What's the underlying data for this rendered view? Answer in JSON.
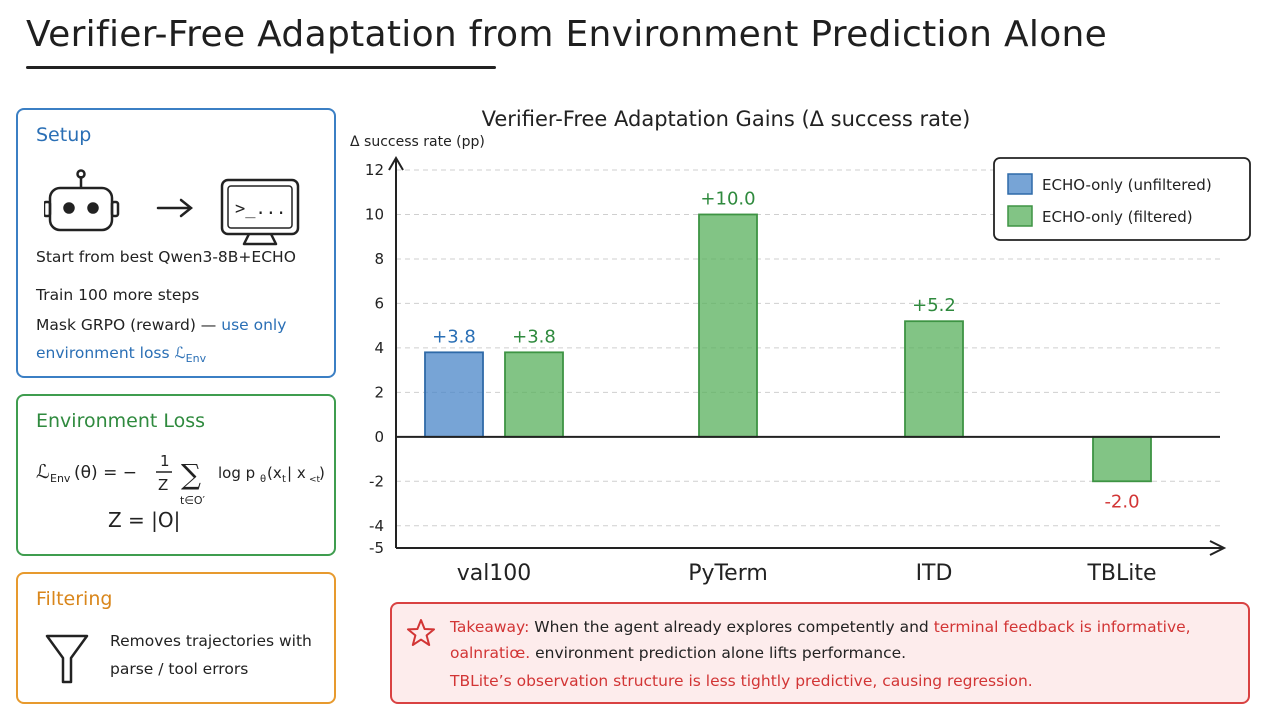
{
  "title": "Verifier-Free Adaptation from Environment Prediction Alone",
  "setup": {
    "heading": "Setup",
    "icons": [
      "robot-icon",
      "arrow-right-icon",
      "terminal-icon"
    ],
    "terminal_prompt": ">_...",
    "line1": "Start from best Qwen3-8B+ECHO",
    "line2": "Train 100 more steps",
    "line3_a": "Mask GRPO (reward) —",
    "line3_b": " use only",
    "line4": "environment loss ℒ",
    "line4_sub": "Env"
  },
  "env_loss": {
    "heading": "Environment Loss",
    "lhs": "ℒ",
    "lhs_sub": "Env",
    "lhs_arg": "(θ) = −",
    "frac_num": "1",
    "frac_den": "Z",
    "sum_symbol": "∑",
    "sum_sub": "t∈O′",
    "log_term": "log p",
    "log_sub": "θ",
    "log_arg_a": "(x",
    "log_arg_sub1": "t",
    "log_arg_b": " | x",
    "log_arg_sub2": "<t",
    "log_arg_c": ")",
    "z_def": "Z = |O|"
  },
  "filtering": {
    "heading": "Filtering",
    "icon": "funnel-icon",
    "line1": "Removes trajectories with",
    "line2": "parse / tool errors"
  },
  "chart_data": {
    "type": "bar",
    "title": "Verifier-Free Adaptation Gains (Δ success rate)",
    "ylabel": "Δ success rate (pp)",
    "xlabel": "",
    "categories": [
      "val100",
      "PyTerm",
      "ITD",
      "TBLite"
    ],
    "ylim": [
      -5,
      12
    ],
    "yticks": [
      -5,
      -4,
      -2,
      0,
      2,
      4,
      6,
      8,
      10,
      12
    ],
    "grid": true,
    "legend_position": "top-right",
    "series": [
      {
        "name": "ECHO-only (unfiltered)",
        "color": "#4a86c8",
        "values": [
          3.8,
          null,
          null,
          null
        ]
      },
      {
        "name": "ECHO-only (filtered)",
        "color": "#58b05c",
        "values": [
          3.8,
          10.0,
          5.2,
          -2.0
        ]
      }
    ],
    "data_labels": [
      {
        "series": 0,
        "category": 0,
        "text": "+3.8",
        "color": "#2a6fb5"
      },
      {
        "series": 1,
        "category": 0,
        "text": "+3.8",
        "color": "#2f8a3e"
      },
      {
        "series": 1,
        "category": 1,
        "text": "+10.0",
        "color": "#2f8a3e"
      },
      {
        "series": 1,
        "category": 2,
        "text": "+5.2",
        "color": "#2f8a3e"
      },
      {
        "series": 1,
        "category": 3,
        "text": "-2.0",
        "color": "#d23535"
      }
    ]
  },
  "takeaway": {
    "icon": "star-icon",
    "label": "Takeaway:",
    "line1_a": " When the agent already explores competently and ",
    "line1_b": "terminal feedback is informative,",
    "line2_a": "oalnratiœ.",
    "line2_b": " environment prediction alone lifts performance.",
    "line3": "TBLite’s observation structure is less tightly predictive, causing regression."
  }
}
